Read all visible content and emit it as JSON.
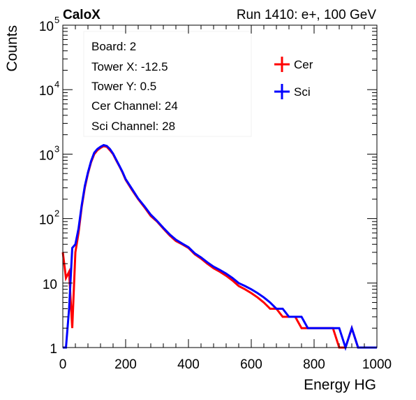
{
  "header": {
    "left_label": "CaloX",
    "right_label": "Run 1410: e+, 100 GeV"
  },
  "info_box": [
    "Board: 2",
    "Tower X: -12.5",
    "Tower Y: 0.5",
    "Cer Channel: 24",
    "Sci Channel: 28"
  ],
  "chart_data": {
    "type": "line",
    "xlabel": "Energy HG",
    "ylabel": "Counts",
    "xlim": [
      0,
      1000
    ],
    "ylim": [
      1,
      100000
    ],
    "y_scale": "log",
    "grid": false,
    "legend_position": "top-right",
    "x_ticks": [
      "0",
      "200",
      "400",
      "600",
      "800",
      "1000"
    ],
    "y_ticks": [
      {
        "base": "1",
        "exp": ""
      },
      {
        "base": "10",
        "exp": ""
      },
      {
        "base": "10",
        "exp": "2"
      },
      {
        "base": "10",
        "exp": "3"
      },
      {
        "base": "10",
        "exp": "4"
      },
      {
        "base": "10",
        "exp": "5"
      }
    ],
    "series": [
      {
        "name": "Cer",
        "color": "#ff0000",
        "x": [
          0,
          10,
          20,
          30,
          40,
          50,
          60,
          70,
          80,
          90,
          100,
          110,
          120,
          130,
          140,
          150,
          160,
          170,
          180,
          190,
          200,
          220,
          240,
          260,
          280,
          300,
          320,
          340,
          360,
          380,
          400,
          420,
          440,
          460,
          480,
          500,
          520,
          540,
          560,
          580,
          600,
          620,
          640,
          660,
          680,
          700,
          720,
          740,
          760,
          780,
          800,
          820,
          840,
          860,
          880,
          900,
          920,
          940,
          960,
          980,
          1000
        ],
        "y": [
          30,
          12,
          15,
          2,
          30,
          60,
          150,
          300,
          500,
          750,
          1000,
          1150,
          1250,
          1330,
          1300,
          1150,
          1000,
          800,
          650,
          520,
          400,
          280,
          200,
          150,
          110,
          90,
          70,
          55,
          45,
          40,
          35,
          28,
          24,
          20,
          17,
          15,
          13,
          11,
          9,
          8,
          7,
          6,
          5,
          4,
          4,
          3,
          3,
          3,
          2,
          2,
          2,
          2,
          2,
          2,
          1,
          1,
          2,
          1,
          1,
          1,
          1
        ]
      },
      {
        "name": "Sci",
        "color": "#0000ff",
        "x": [
          0,
          10,
          20,
          30,
          40,
          50,
          60,
          70,
          80,
          90,
          100,
          110,
          120,
          130,
          140,
          150,
          160,
          170,
          180,
          190,
          200,
          220,
          240,
          260,
          280,
          300,
          320,
          340,
          360,
          380,
          400,
          420,
          440,
          460,
          480,
          500,
          520,
          540,
          560,
          580,
          600,
          620,
          640,
          660,
          680,
          700,
          720,
          740,
          760,
          780,
          800,
          820,
          840,
          860,
          880,
          900,
          920,
          940,
          960,
          980,
          1000
        ],
        "y": [
          1,
          1,
          4,
          35,
          40,
          70,
          160,
          320,
          520,
          780,
          1050,
          1200,
          1300,
          1380,
          1340,
          1200,
          1020,
          820,
          660,
          530,
          410,
          290,
          205,
          155,
          115,
          92,
          72,
          57,
          47,
          41,
          36,
          29,
          25,
          21,
          18,
          16,
          14,
          12,
          10,
          9,
          8,
          7,
          6,
          5,
          4,
          4,
          3,
          3,
          3,
          2,
          2,
          2,
          2,
          2,
          2,
          1,
          2,
          1,
          1,
          1,
          1
        ]
      }
    ]
  }
}
